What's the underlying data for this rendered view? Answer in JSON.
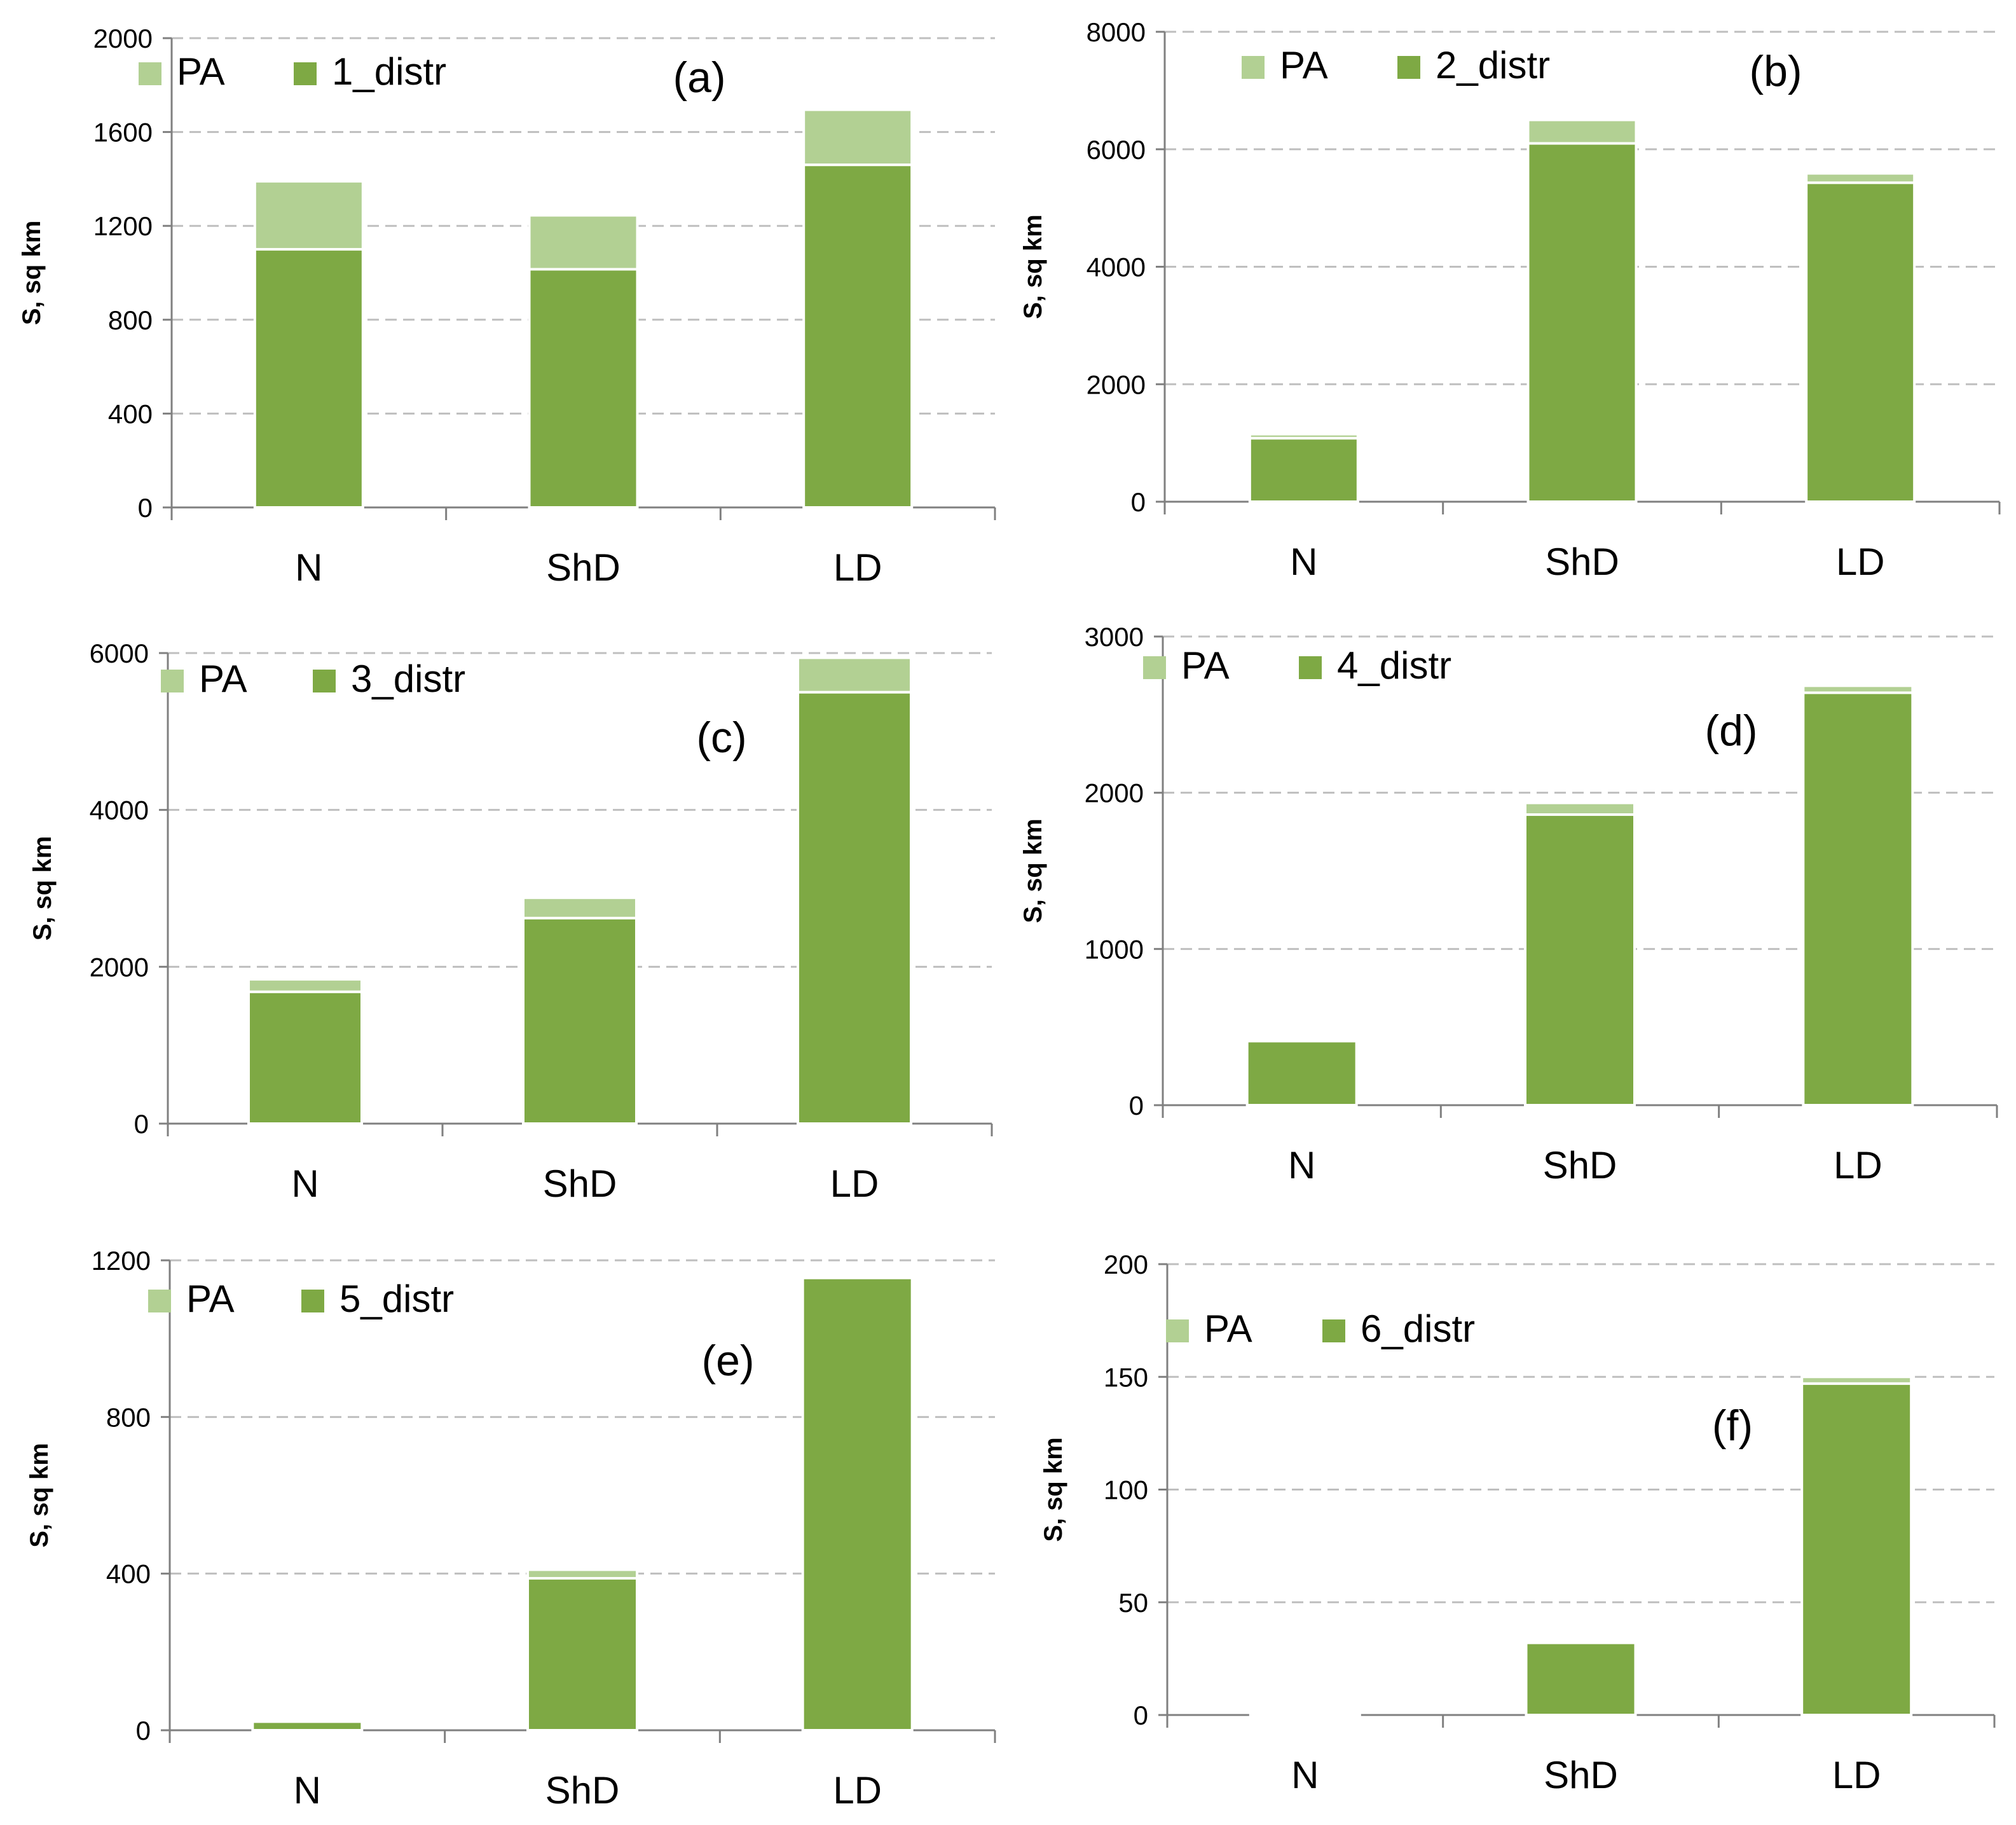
{
  "colors": {
    "distr": "#7ea944",
    "pa": "#b2d093",
    "grid": "#bfbfbf",
    "axis": "#808080",
    "separator": "#ffffff"
  },
  "chart_data": [
    {
      "type": "bar",
      "stacked": true,
      "panel_label": "(a)",
      "categories": [
        "N",
        "ShD",
        "LD"
      ],
      "series": [
        {
          "name": "1_distr",
          "values": [
            1100,
            1015,
            1460
          ]
        },
        {
          "name": "PA",
          "values": [
            290,
            230,
            235
          ]
        }
      ],
      "legend": [
        "PA",
        "1_distr"
      ],
      "ylabel": "S, sq km",
      "ylim": [
        0,
        2000
      ],
      "yticks": [
        0,
        400,
        800,
        1200,
        1600,
        2000
      ],
      "grid": true
    },
    {
      "type": "bar",
      "stacked": true,
      "panel_label": "(b)",
      "categories": [
        "N",
        "ShD",
        "LD"
      ],
      "series": [
        {
          "name": "2_distr",
          "values": [
            1080,
            6100,
            5430
          ]
        },
        {
          "name": "PA",
          "values": [
            70,
            400,
            160
          ]
        }
      ],
      "legend": [
        "PA",
        "2_distr"
      ],
      "ylabel": "S, sq km",
      "ylim": [
        0,
        8000
      ],
      "yticks": [
        0,
        2000,
        4000,
        6000,
        8000
      ],
      "grid": true
    },
    {
      "type": "bar",
      "stacked": true,
      "panel_label": "(c)",
      "categories": [
        "N",
        "ShD",
        "LD"
      ],
      "series": [
        {
          "name": "3_distr",
          "values": [
            1680,
            2620,
            5500
          ]
        },
        {
          "name": "PA",
          "values": [
            160,
            260,
            440
          ]
        }
      ],
      "legend": [
        "PA",
        "3_distr"
      ],
      "ylabel": "S, sq km",
      "ylim": [
        0,
        6000
      ],
      "yticks": [
        0,
        2000,
        4000,
        6000
      ],
      "grid": true
    },
    {
      "type": "bar",
      "stacked": true,
      "panel_label": "(d)",
      "categories": [
        "N",
        "ShD",
        "LD"
      ],
      "series": [
        {
          "name": "4_distr",
          "values": [
            410,
            1860,
            2640
          ]
        },
        {
          "name": "PA",
          "values": [
            5,
            75,
            45
          ]
        }
      ],
      "legend": [
        "PA",
        "4_distr"
      ],
      "ylabel": "S, sq km",
      "ylim": [
        0,
        3000
      ],
      "yticks": [
        0,
        1000,
        2000,
        3000
      ],
      "grid": true
    },
    {
      "type": "bar",
      "stacked": true,
      "panel_label": "(e)",
      "categories": [
        "N",
        "ShD",
        "LD"
      ],
      "series": [
        {
          "name": "5_distr",
          "values": [
            22,
            388,
            1155
          ]
        },
        {
          "name": "PA",
          "values": [
            2,
            22,
            5
          ]
        }
      ],
      "legend": [
        "PA",
        "5_distr"
      ],
      "ylabel": "S, sq km",
      "ylim": [
        0,
        1200
      ],
      "yticks": [
        0,
        400,
        800,
        1200
      ],
      "grid": true
    },
    {
      "type": "bar",
      "stacked": true,
      "panel_label": "(f)",
      "categories": [
        "N",
        "ShD",
        "LD"
      ],
      "series": [
        {
          "name": "6_distr",
          "values": [
            1,
            32,
            147
          ]
        },
        {
          "name": "PA",
          "values": [
            0.5,
            0.5,
            3
          ]
        }
      ],
      "legend": [
        "PA",
        "6_distr"
      ],
      "ylabel": "S, sq km",
      "ylim": [
        0,
        200
      ],
      "yticks": [
        0,
        50,
        100,
        150,
        200
      ],
      "grid": true
    }
  ]
}
